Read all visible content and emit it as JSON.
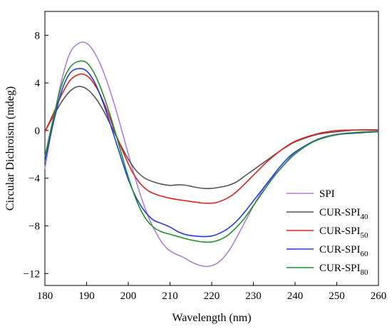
{
  "chart_data": {
    "type": "line",
    "xlabel": "Wavelength (nm)",
    "ylabel": "Circular Dichroism (mdeg)",
    "xlim": [
      180,
      260
    ],
    "ylim": [
      -13,
      10
    ],
    "x_ticks": [
      180,
      190,
      200,
      210,
      220,
      230,
      240,
      250,
      260
    ],
    "y_ticks": [
      8,
      4,
      0,
      -4,
      -8,
      -12
    ],
    "y_tick_labels": [
      "8",
      "4",
      "0",
      "−4",
      "−8",
      "−12"
    ],
    "grid": false,
    "legend_position": "lower-right",
    "series": [
      {
        "name": "SPI",
        "legend_base": "SPI",
        "legend_sub": "",
        "color": "#b07fd6",
        "x": [
          180,
          182,
          184,
          186,
          188,
          189.5,
          191,
          193,
          195,
          197,
          199,
          201,
          203,
          205,
          207,
          209,
          211,
          213,
          215,
          217,
          219,
          221,
          223,
          225,
          227,
          229,
          231,
          233,
          236,
          240,
          245,
          250,
          255,
          260
        ],
        "y": [
          -3.2,
          0.8,
          4.2,
          6.5,
          7.3,
          7.4,
          7.0,
          5.8,
          4.0,
          1.8,
          -0.7,
          -3.2,
          -5.5,
          -7.4,
          -8.8,
          -9.8,
          -10.3,
          -10.6,
          -11.0,
          -11.3,
          -11.4,
          -11.2,
          -10.6,
          -9.6,
          -8.3,
          -7.0,
          -5.7,
          -4.6,
          -3.4,
          -2.0,
          -0.8,
          -0.3,
          -0.15,
          -0.1
        ]
      },
      {
        "name": "CUR-SPI40",
        "legend_base": "CUR-SPI",
        "legend_sub": "40",
        "color": "#555555",
        "x": [
          180,
          182,
          184,
          186,
          188,
          190,
          192,
          194,
          196,
          198,
          200,
          202,
          204,
          206,
          208,
          210,
          212,
          214,
          216,
          218,
          220,
          222,
          224,
          226,
          228,
          230,
          232,
          234,
          236,
          238,
          240,
          245,
          250,
          255,
          260
        ],
        "y": [
          -0.1,
          1.2,
          2.4,
          3.3,
          3.7,
          3.5,
          2.8,
          1.7,
          0.3,
          -1.1,
          -2.4,
          -3.4,
          -4.0,
          -4.3,
          -4.5,
          -4.6,
          -4.55,
          -4.6,
          -4.75,
          -4.85,
          -4.85,
          -4.75,
          -4.6,
          -4.3,
          -3.8,
          -3.3,
          -2.8,
          -2.3,
          -1.8,
          -1.35,
          -0.95,
          -0.35,
          -0.1,
          0.05,
          0.05
        ]
      },
      {
        "name": "CUR-SPI50",
        "legend_base": "CUR-SPI",
        "legend_sub": "50",
        "color": "#e02020",
        "x": [
          180,
          182,
          184,
          186,
          188,
          189.5,
          191,
          193,
          195,
          197,
          199,
          201,
          203,
          205,
          207,
          209,
          211,
          213,
          215,
          217,
          219,
          221,
          223,
          225,
          227,
          229,
          231,
          233,
          235,
          237,
          240,
          245,
          250,
          255,
          260
        ],
        "y": [
          -0.1,
          1.4,
          3.0,
          4.2,
          4.7,
          4.7,
          4.3,
          3.2,
          1.6,
          -0.3,
          -2.0,
          -3.5,
          -4.5,
          -5.1,
          -5.4,
          -5.6,
          -5.75,
          -5.85,
          -5.95,
          -6.05,
          -6.1,
          -6.05,
          -5.8,
          -5.4,
          -4.8,
          -4.1,
          -3.4,
          -2.7,
          -2.1,
          -1.55,
          -0.9,
          -0.3,
          0.0,
          0.05,
          0.05
        ]
      },
      {
        "name": "CUR-SPI60",
        "legend_base": "CUR-SPI",
        "legend_sub": "60",
        "color": "#1e3ee0",
        "x": [
          180,
          182,
          184,
          186,
          188,
          190,
          192,
          194,
          196,
          198,
          200,
          202,
          204,
          206,
          208,
          210,
          212,
          214,
          216,
          218,
          220,
          222,
          224,
          226,
          228,
          230,
          232,
          234,
          236,
          238,
          240,
          245,
          250,
          255,
          260
        ],
        "y": [
          -2.6,
          0.6,
          3.3,
          4.8,
          5.2,
          5.0,
          4.0,
          2.3,
          0.2,
          -2.0,
          -4.1,
          -5.7,
          -6.8,
          -7.5,
          -7.8,
          -8.1,
          -8.5,
          -8.75,
          -8.85,
          -8.9,
          -8.85,
          -8.6,
          -8.2,
          -7.6,
          -6.8,
          -5.9,
          -5.0,
          -4.1,
          -3.2,
          -2.4,
          -1.8,
          -0.8,
          -0.35,
          -0.2,
          -0.1
        ]
      },
      {
        "name": "CUR-SPI80",
        "legend_base": "CUR-SPI",
        "legend_sub": "80",
        "color": "#23902e",
        "x": [
          180,
          182,
          184,
          186,
          188,
          190,
          192,
          194,
          196,
          198,
          200,
          202,
          204,
          206,
          208,
          210,
          212,
          214,
          216,
          218,
          220,
          222,
          224,
          226,
          228,
          230,
          232,
          234,
          236,
          238,
          240,
          245,
          250,
          255,
          260
        ],
        "y": [
          -2.2,
          1.0,
          3.8,
          5.3,
          5.8,
          5.7,
          4.7,
          3.0,
          0.9,
          -1.5,
          -3.9,
          -5.9,
          -7.3,
          -8.1,
          -8.5,
          -8.7,
          -8.9,
          -9.1,
          -9.25,
          -9.35,
          -9.35,
          -9.15,
          -8.75,
          -8.1,
          -7.3,
          -6.3,
          -5.3,
          -4.3,
          -3.4,
          -2.6,
          -1.9,
          -0.85,
          -0.35,
          -0.15,
          -0.05
        ]
      }
    ]
  }
}
